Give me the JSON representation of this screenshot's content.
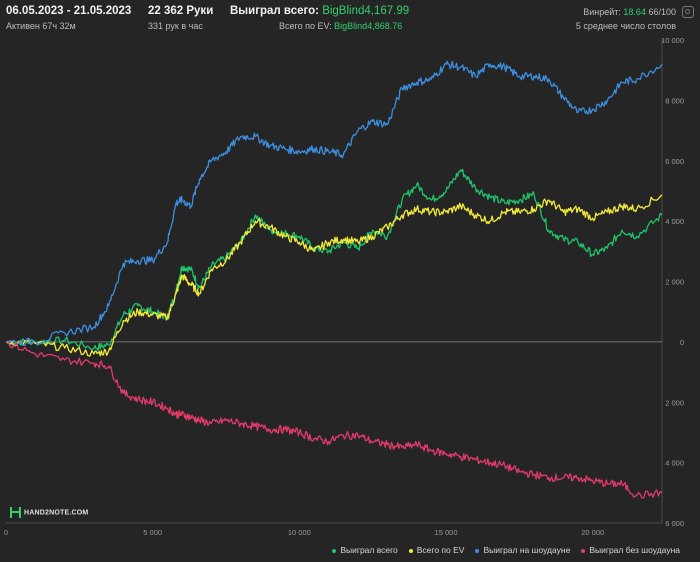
{
  "header": {
    "date_range": "06.05.2023 - 21.05.2023",
    "active": "Активен 67ч 32м",
    "hands": "22 362 Руки",
    "hands_per_hour": "331 рук в час",
    "won_total_label": "Выиграл всего:",
    "won_total_value": "BigBlind4,167.99",
    "ev_total_label": "Всего по EV:",
    "ev_total_value": "BigBlind4,868.76",
    "winrate_label": "Винрейт:",
    "winrate_value": "18.64",
    "winrate_hands": "66/100",
    "avg_tables": "5 среднее число столов"
  },
  "logo_text": "HAND2NOTE.COM",
  "icons": {
    "settings": "gear-icon",
    "logo": "hand2note-logo-icon"
  },
  "colors": {
    "background": "#252525",
    "won_total": "#1fc46a",
    "ev": "#f2ea3a",
    "showdown": "#3d8ee0",
    "non_showdown": "#e23a6a"
  },
  "chart_data": {
    "type": "line",
    "xlim": [
      0,
      22362
    ],
    "ylim": [
      -6000,
      10000
    ],
    "x_ticks": [
      0,
      5000,
      10000,
      15000,
      20000
    ],
    "x_tick_labels": [
      "0",
      "5 000",
      "10 000",
      "15 000",
      "20 000"
    ],
    "y_ticks": [
      10000,
      8000,
      6000,
      4000,
      2000,
      0,
      -2000,
      -4000,
      -6000
    ],
    "y_tick_labels": [
      "10 000",
      "8 000",
      "6 000",
      "4 000",
      "2 000",
      "0",
      "2 000",
      "4 000",
      "6 000"
    ],
    "grid": false,
    "zero_line": true,
    "legend_position": "bottom-right",
    "series": [
      {
        "name": "Выиграл всего",
        "color_key": "won_total",
        "x": [
          0,
          1000,
          2000,
          3000,
          3500,
          4000,
          4500,
          5000,
          5500,
          5800,
          6000,
          6300,
          6600,
          7000,
          7500,
          8000,
          8500,
          9000,
          9500,
          10000,
          10500,
          11000,
          11500,
          12000,
          12500,
          13000,
          13500,
          14000,
          14500,
          15000,
          15500,
          16000,
          16500,
          17000,
          17500,
          18000,
          18500,
          19000,
          19500,
          20000,
          20500,
          21000,
          21500,
          22362
        ],
        "y": [
          0,
          0,
          50,
          -200,
          -100,
          900,
          1200,
          1000,
          800,
          1700,
          2500,
          2400,
          1800,
          2500,
          2800,
          3300,
          4200,
          3700,
          3600,
          3500,
          3100,
          3000,
          3300,
          3100,
          3700,
          3500,
          4700,
          5200,
          4700,
          5000,
          5700,
          5100,
          4800,
          4600,
          4700,
          4900,
          3700,
          3400,
          3300,
          2900,
          3100,
          3700,
          3500,
          4200
        ]
      },
      {
        "name": "Всего по EV",
        "color_key": "ev",
        "x": [
          0,
          1000,
          2000,
          3000,
          3500,
          4000,
          4500,
          5000,
          5500,
          5800,
          6000,
          6300,
          6600,
          7000,
          7500,
          8000,
          8500,
          9000,
          9500,
          10000,
          10500,
          11000,
          11500,
          12000,
          12500,
          13000,
          13500,
          14000,
          14500,
          15000,
          15500,
          16000,
          16500,
          17000,
          17500,
          18000,
          18500,
          19000,
          19500,
          20000,
          20500,
          21000,
          21500,
          22362
        ],
        "y": [
          0,
          -50,
          -200,
          -400,
          -300,
          700,
          1000,
          900,
          800,
          1600,
          2200,
          1900,
          1600,
          2400,
          2700,
          3300,
          4000,
          3800,
          3500,
          3300,
          3000,
          3300,
          3400,
          3300,
          3500,
          3800,
          4200,
          4400,
          4300,
          4300,
          4500,
          4200,
          4000,
          4300,
          4300,
          4400,
          4700,
          4300,
          4400,
          4100,
          4300,
          4500,
          4400,
          4870
        ]
      },
      {
        "name": "Выиграл на шоудауне",
        "color_key": "showdown",
        "x": [
          0,
          1000,
          2000,
          3000,
          3500,
          4000,
          4500,
          5000,
          5500,
          5800,
          6000,
          6300,
          6600,
          7000,
          7500,
          8000,
          8500,
          9000,
          9500,
          10000,
          10500,
          11000,
          11500,
          12000,
          12500,
          13000,
          13500,
          14000,
          14500,
          15000,
          15500,
          16000,
          16500,
          17000,
          17500,
          18000,
          18500,
          19000,
          19500,
          20000,
          20500,
          21000,
          21500,
          22362
        ],
        "y": [
          0,
          0,
          300,
          500,
          1200,
          2600,
          2700,
          2700,
          3300,
          4600,
          4700,
          4500,
          5400,
          6000,
          6300,
          6800,
          6800,
          6500,
          6400,
          6300,
          6400,
          6300,
          6200,
          7000,
          7300,
          7200,
          8400,
          8600,
          8700,
          9200,
          9100,
          8800,
          9200,
          9100,
          8800,
          8800,
          8700,
          8100,
          7600,
          7700,
          8000,
          8600,
          8700,
          9200
        ]
      },
      {
        "name": "Выиграл без шоудауна",
        "color_key": "non_showdown",
        "x": [
          0,
          1000,
          2000,
          3000,
          3500,
          4000,
          4500,
          5000,
          5500,
          5800,
          6000,
          6300,
          6600,
          7000,
          7500,
          8000,
          8500,
          9000,
          9500,
          10000,
          10500,
          11000,
          11500,
          12000,
          12500,
          13000,
          13500,
          14000,
          14500,
          15000,
          15500,
          16000,
          16500,
          17000,
          17500,
          18000,
          18500,
          19000,
          19500,
          20000,
          20500,
          21000,
          21500,
          22362
        ],
        "y": [
          0,
          -400,
          -600,
          -700,
          -800,
          -1700,
          -1900,
          -2000,
          -2200,
          -2400,
          -2400,
          -2500,
          -2600,
          -2700,
          -2600,
          -2700,
          -2800,
          -2900,
          -2900,
          -3000,
          -3200,
          -3300,
          -3100,
          -3100,
          -3300,
          -3400,
          -3500,
          -3400,
          -3600,
          -3700,
          -3800,
          -3900,
          -4000,
          -4100,
          -4300,
          -4400,
          -4500,
          -4500,
          -4500,
          -4600,
          -4700,
          -4700,
          -5100,
          -5000
        ]
      }
    ]
  }
}
